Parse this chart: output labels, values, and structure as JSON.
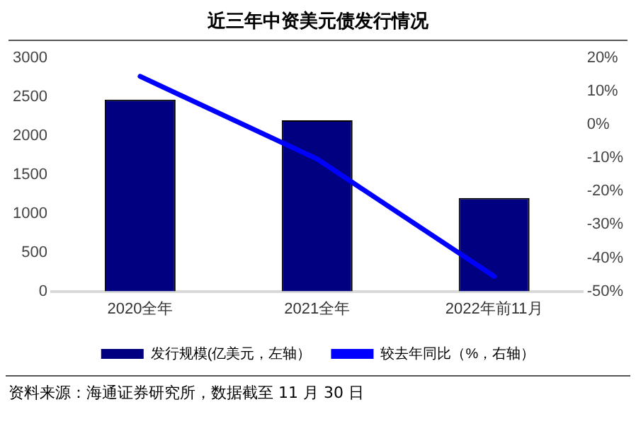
{
  "chart_data": {
    "type": "bar",
    "title": "近三年中资美元债发行情况",
    "categories": [
      "2020全年",
      "2021全年",
      "2022年前11月"
    ],
    "series": [
      {
        "name": "发行规模(亿美元，左轴）",
        "color": "#000080",
        "values": [
          2465,
          2200,
          1200
        ]
      },
      {
        "name": "较去年同比（%，右轴）",
        "type": "line",
        "axis": "y2",
        "color": "#0000ff",
        "values": [
          14.5,
          -10.3,
          -45.5
        ]
      }
    ],
    "ylim": [
      0,
      3000
    ],
    "yticks": [
      0,
      500,
      1000,
      1500,
      2000,
      2500,
      3000
    ],
    "y2lim": [
      -50,
      20
    ],
    "y2ticks": [
      {
        "value": -50,
        "label": "-50%"
      },
      {
        "value": -40,
        "label": "-40%"
      },
      {
        "value": -30,
        "label": "-30%"
      },
      {
        "value": -20,
        "label": "-20%"
      },
      {
        "value": -10,
        "label": "-10%"
      },
      {
        "value": 0,
        "label": "0%"
      },
      {
        "value": 10,
        "label": "10%"
      },
      {
        "value": 20,
        "label": "20%"
      }
    ],
    "grid": false,
    "legend": "bottom",
    "marker": "none",
    "annotations": [
      "资料来源：海通证券研究所，数据截至 11 月 30 日"
    ]
  }
}
